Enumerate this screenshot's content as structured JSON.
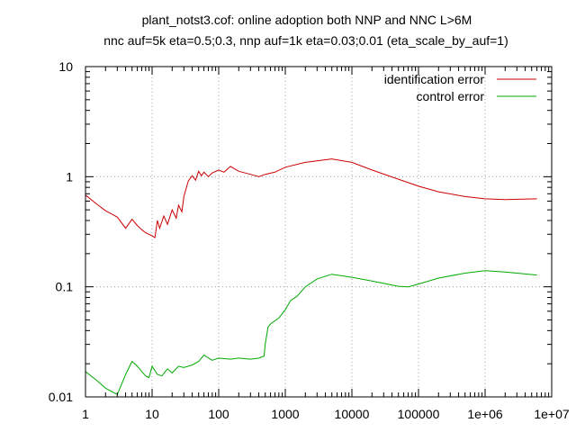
{
  "chart_data": {
    "type": "line",
    "title": "plant_notst3.cof: online adoption both NNP and NNC L>6M",
    "subtitle": "nnc auf=5k eta=0.5;0.3, nnp auf=1k eta=0.03;0.01 (eta_scale_by_auf=1)",
    "xlabel": "",
    "ylabel": "",
    "x_scale": "log",
    "y_scale": "log",
    "xlim": [
      1,
      10000000
    ],
    "ylim": [
      0.01,
      10
    ],
    "grid": true,
    "legend_position": "top-right",
    "x_ticks": [
      {
        "value": 1,
        "label": "1"
      },
      {
        "value": 10,
        "label": "10"
      },
      {
        "value": 100,
        "label": "100"
      },
      {
        "value": 1000,
        "label": "1000"
      },
      {
        "value": 10000,
        "label": "10000"
      },
      {
        "value": 100000,
        "label": "100000"
      },
      {
        "value": 1000000,
        "label": "1e+06"
      },
      {
        "value": 10000000,
        "label": "1e+07"
      }
    ],
    "y_ticks": [
      {
        "value": 0.01,
        "label": "0.01"
      },
      {
        "value": 0.1,
        "label": "0.1"
      },
      {
        "value": 1,
        "label": "1"
      },
      {
        "value": 10,
        "label": "10"
      }
    ],
    "series": [
      {
        "name": "identification error",
        "color": "#cc0000",
        "points": [
          [
            1,
            0.68
          ],
          [
            1.5,
            0.56
          ],
          [
            2,
            0.49
          ],
          [
            3,
            0.43
          ],
          [
            4,
            0.34
          ],
          [
            5,
            0.41
          ],
          [
            6,
            0.36
          ],
          [
            7,
            0.33
          ],
          [
            8,
            0.31
          ],
          [
            10,
            0.29
          ],
          [
            11,
            0.28
          ],
          [
            12,
            0.4
          ],
          [
            13,
            0.34
          ],
          [
            15,
            0.44
          ],
          [
            17,
            0.37
          ],
          [
            20,
            0.5
          ],
          [
            23,
            0.42
          ],
          [
            25,
            0.55
          ],
          [
            28,
            0.48
          ],
          [
            30,
            0.66
          ],
          [
            35,
            0.92
          ],
          [
            40,
            1.02
          ],
          [
            45,
            0.93
          ],
          [
            50,
            1.12
          ],
          [
            55,
            1.02
          ],
          [
            60,
            1.1
          ],
          [
            70,
            1.0
          ],
          [
            80,
            1.08
          ],
          [
            100,
            1.15
          ],
          [
            120,
            1.1
          ],
          [
            150,
            1.24
          ],
          [
            200,
            1.12
          ],
          [
            300,
            1.05
          ],
          [
            400,
            1.0
          ],
          [
            500,
            1.05
          ],
          [
            700,
            1.1
          ],
          [
            1000,
            1.22
          ],
          [
            2000,
            1.35
          ],
          [
            5000,
            1.45
          ],
          [
            10000,
            1.35
          ],
          [
            20000,
            1.15
          ],
          [
            50000,
            0.95
          ],
          [
            100000,
            0.82
          ],
          [
            200000,
            0.73
          ],
          [
            500000,
            0.66
          ],
          [
            1000000,
            0.63
          ],
          [
            2000000,
            0.62
          ],
          [
            6000000,
            0.63
          ]
        ]
      },
      {
        "name": "control error",
        "color": "#00aa00",
        "points": [
          [
            1,
            0.017
          ],
          [
            1.5,
            0.014
          ],
          [
            2,
            0.012
          ],
          [
            3,
            0.0105
          ],
          [
            4,
            0.016
          ],
          [
            5,
            0.021
          ],
          [
            6,
            0.019
          ],
          [
            7,
            0.017
          ],
          [
            8,
            0.0155
          ],
          [
            9,
            0.015
          ],
          [
            10,
            0.019
          ],
          [
            12,
            0.016
          ],
          [
            14,
            0.0155
          ],
          [
            17,
            0.018
          ],
          [
            20,
            0.0165
          ],
          [
            25,
            0.019
          ],
          [
            30,
            0.0185
          ],
          [
            40,
            0.0195
          ],
          [
            50,
            0.021
          ],
          [
            60,
            0.024
          ],
          [
            80,
            0.0215
          ],
          [
            100,
            0.0225
          ],
          [
            150,
            0.022
          ],
          [
            200,
            0.0225
          ],
          [
            300,
            0.022
          ],
          [
            400,
            0.0225
          ],
          [
            480,
            0.0235
          ],
          [
            500,
            0.03
          ],
          [
            550,
            0.043
          ],
          [
            600,
            0.046
          ],
          [
            800,
            0.052
          ],
          [
            1000,
            0.062
          ],
          [
            1200,
            0.075
          ],
          [
            1500,
            0.082
          ],
          [
            2000,
            0.1
          ],
          [
            3000,
            0.118
          ],
          [
            5000,
            0.13
          ],
          [
            10000,
            0.122
          ],
          [
            20000,
            0.113
          ],
          [
            50000,
            0.101
          ],
          [
            70000,
            0.1
          ],
          [
            100000,
            0.106
          ],
          [
            200000,
            0.12
          ],
          [
            500000,
            0.133
          ],
          [
            1000000,
            0.14
          ],
          [
            2000000,
            0.136
          ],
          [
            6000000,
            0.128
          ]
        ]
      }
    ]
  }
}
